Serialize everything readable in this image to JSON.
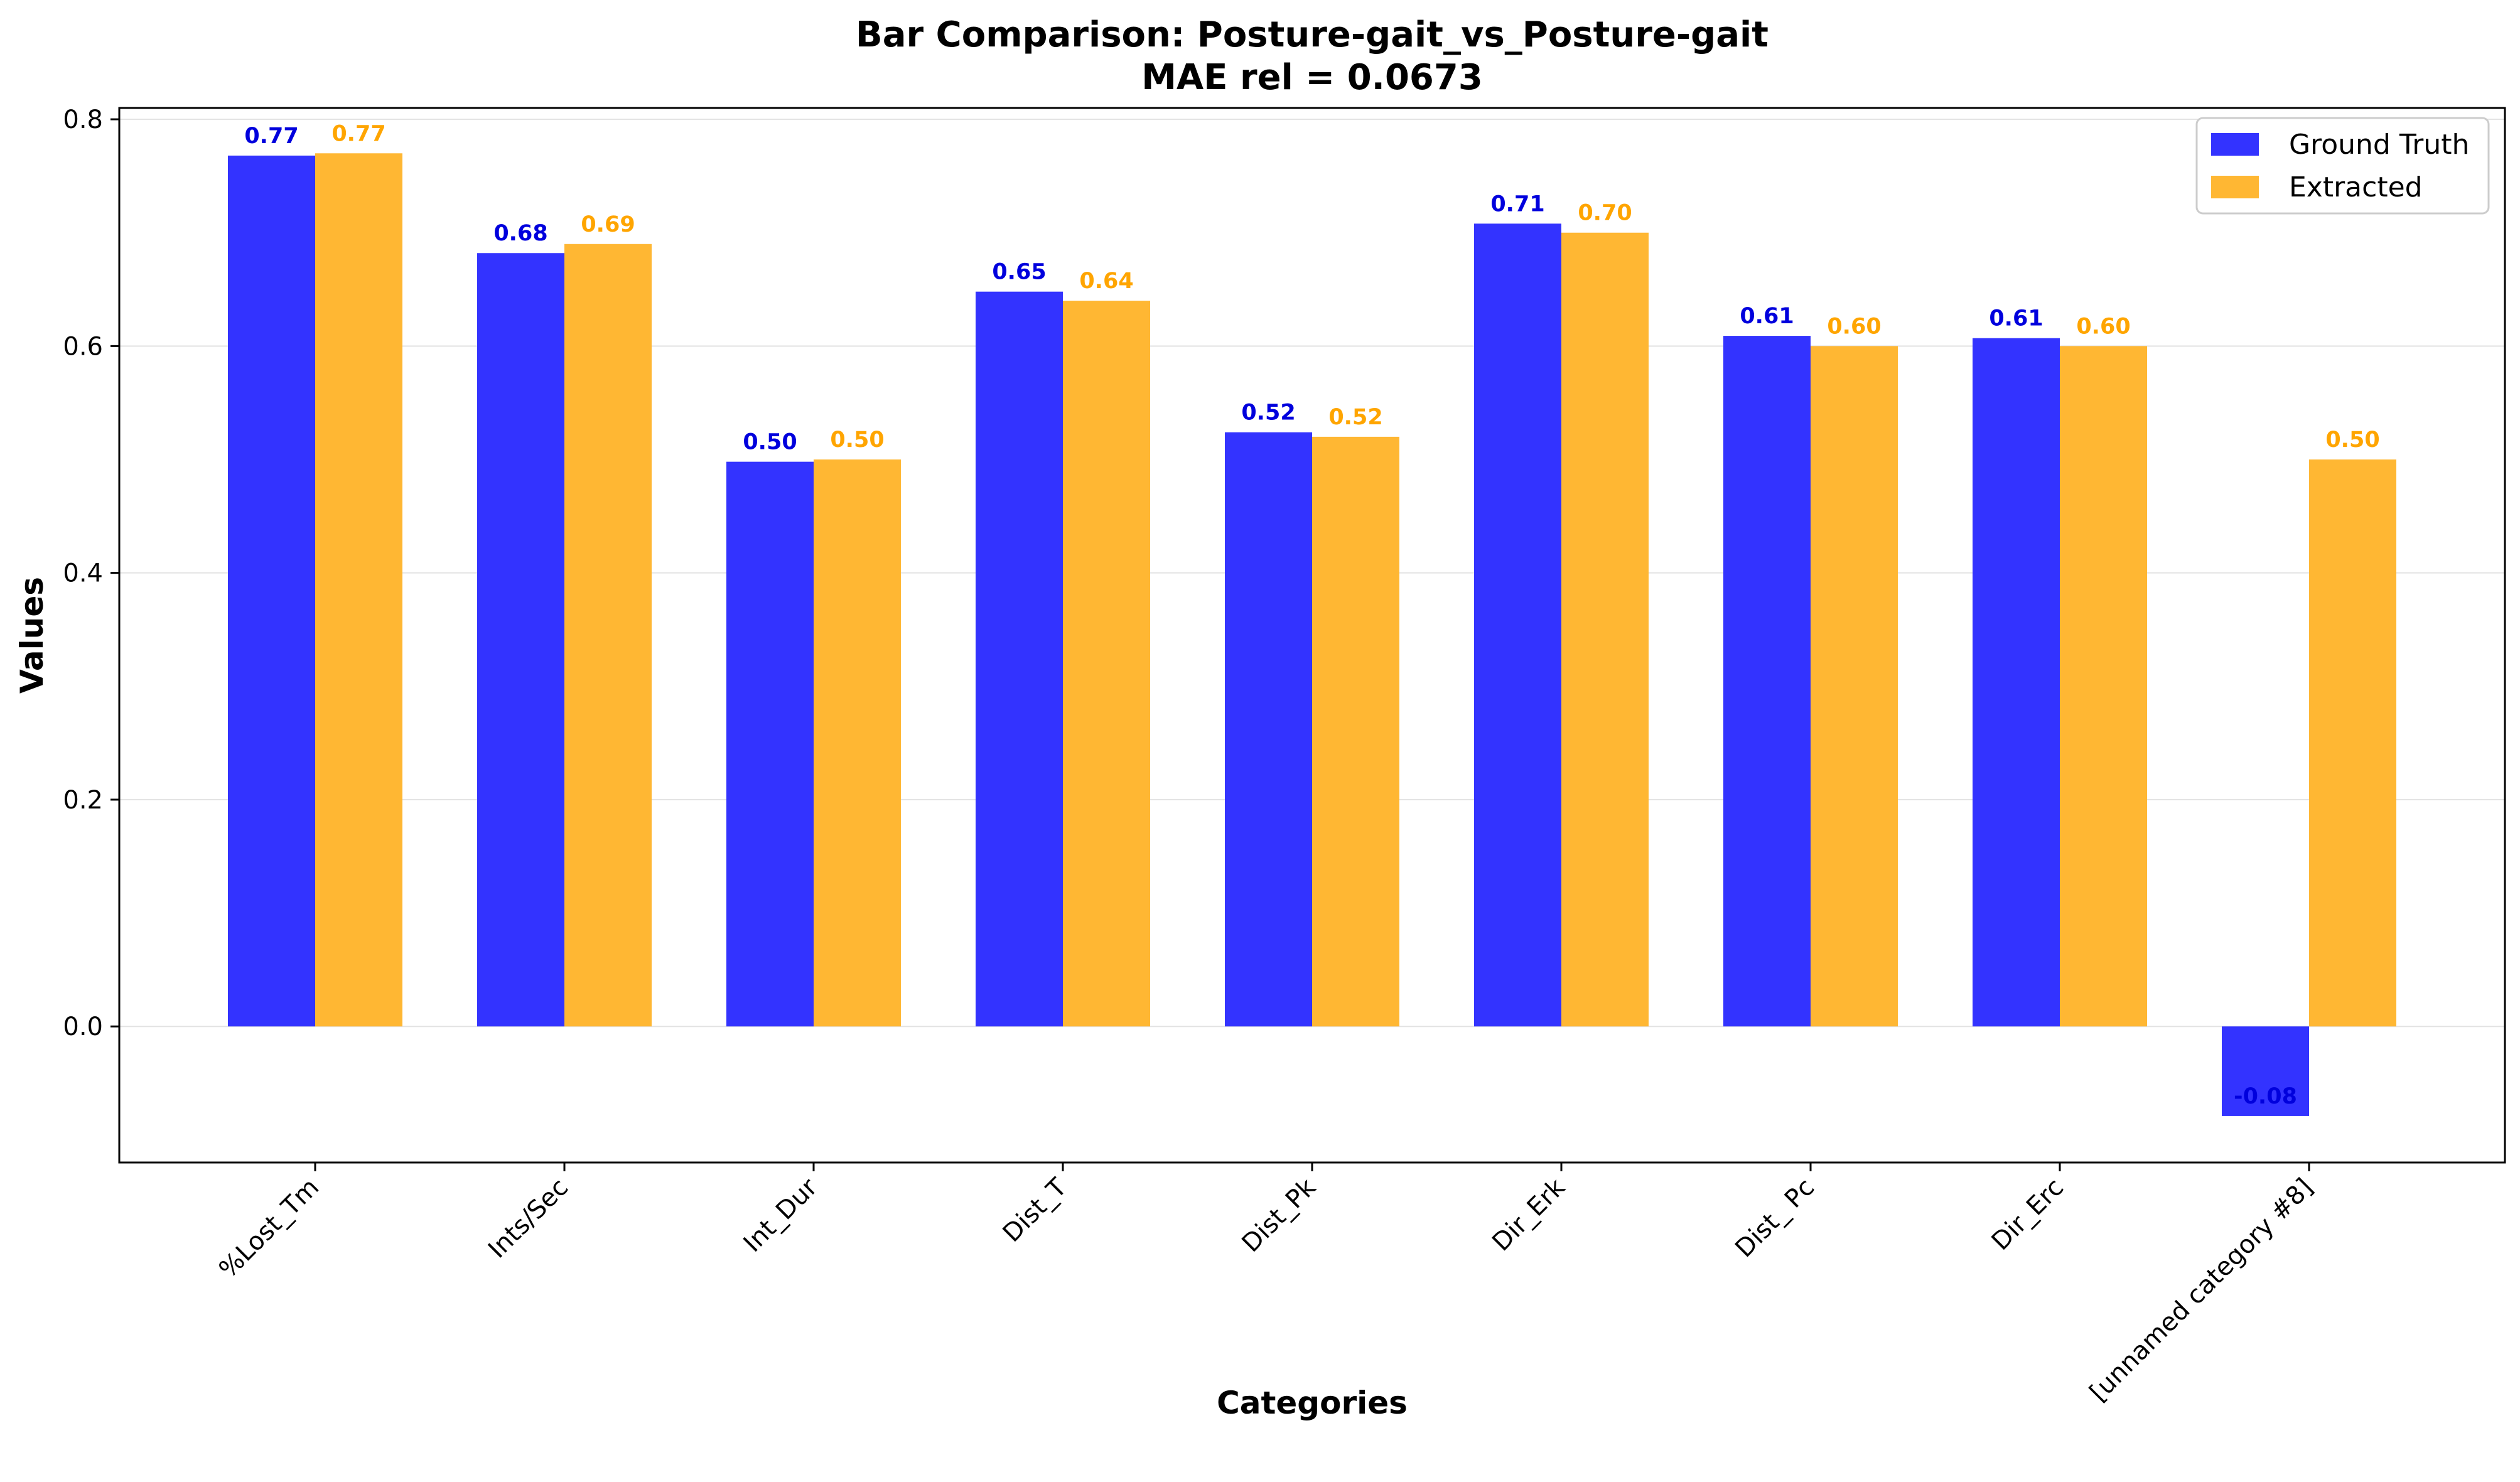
{
  "chart_data": {
    "type": "bar",
    "title": "Bar Comparison: Posture-gait_vs_Posture-gait",
    "subtitle": "MAE rel = 0.0673",
    "xlabel": "Categories",
    "ylabel": "Values",
    "categories": [
      "%Lost_Tm",
      "Ints/Sec",
      "Int_Dur",
      "Dist_T",
      "Dist_Pk",
      "Dir_Erk",
      "Dist_ Pc",
      "Dir_Erc",
      "[unnamed category #8]"
    ],
    "series": [
      {
        "name": "Ground Truth",
        "color": "#3333ff",
        "label_color": "#0000dd",
        "values": [
          0.768,
          0.682,
          0.498,
          0.648,
          0.524,
          0.708,
          0.609,
          0.607,
          -0.079
        ],
        "labels": [
          "0.77",
          "0.68",
          "0.50",
          "0.65",
          "0.52",
          "0.71",
          "0.61",
          "0.61",
          "-0.08"
        ]
      },
      {
        "name": "Extracted",
        "color": "#ffb733",
        "label_color": "#ffa500",
        "values": [
          0.77,
          0.69,
          0.5,
          0.64,
          0.52,
          0.7,
          0.6,
          0.6,
          0.5
        ],
        "labels": [
          "0.77",
          "0.69",
          "0.50",
          "0.64",
          "0.52",
          "0.70",
          "0.60",
          "0.60",
          "0.50"
        ]
      }
    ],
    "ylim": [
      -0.12,
      0.81
    ],
    "yticks": [
      0.0,
      0.2,
      0.4,
      0.6,
      0.8
    ],
    "ytick_labels": [
      "0.0",
      "0.2",
      "0.4",
      "0.6",
      "0.8"
    ],
    "grid": "horizontal",
    "legend_position": "top-right"
  }
}
